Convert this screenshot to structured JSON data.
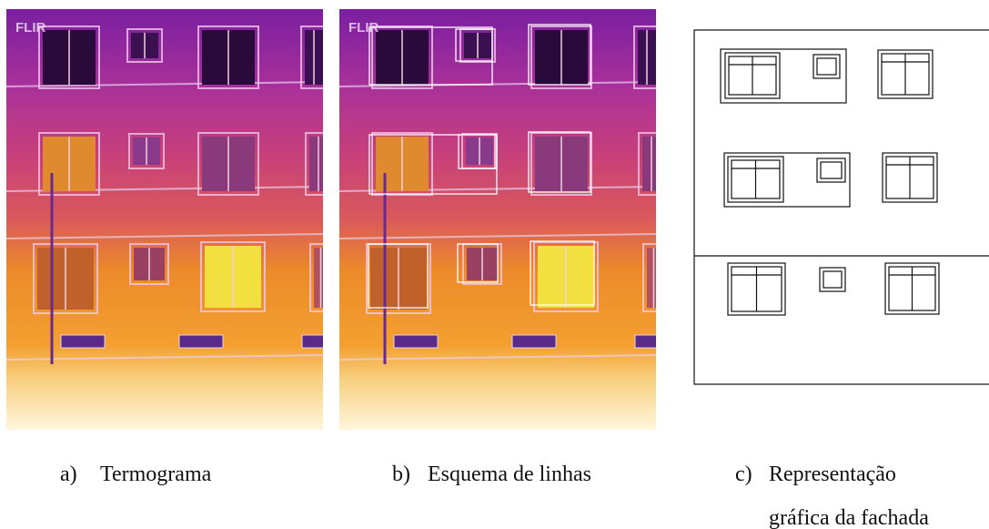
{
  "panels": [
    {
      "logo": "FLIR",
      "caption": {
        "label": "a)",
        "text": "Termograma"
      }
    },
    {
      "logo": "FLIR",
      "caption": {
        "label": "b)",
        "text": "Esquema de linhas"
      }
    },
    {
      "caption": {
        "label": "c)",
        "lines": [
          "Representação",
          "gráfica da fachada"
        ]
      }
    }
  ]
}
